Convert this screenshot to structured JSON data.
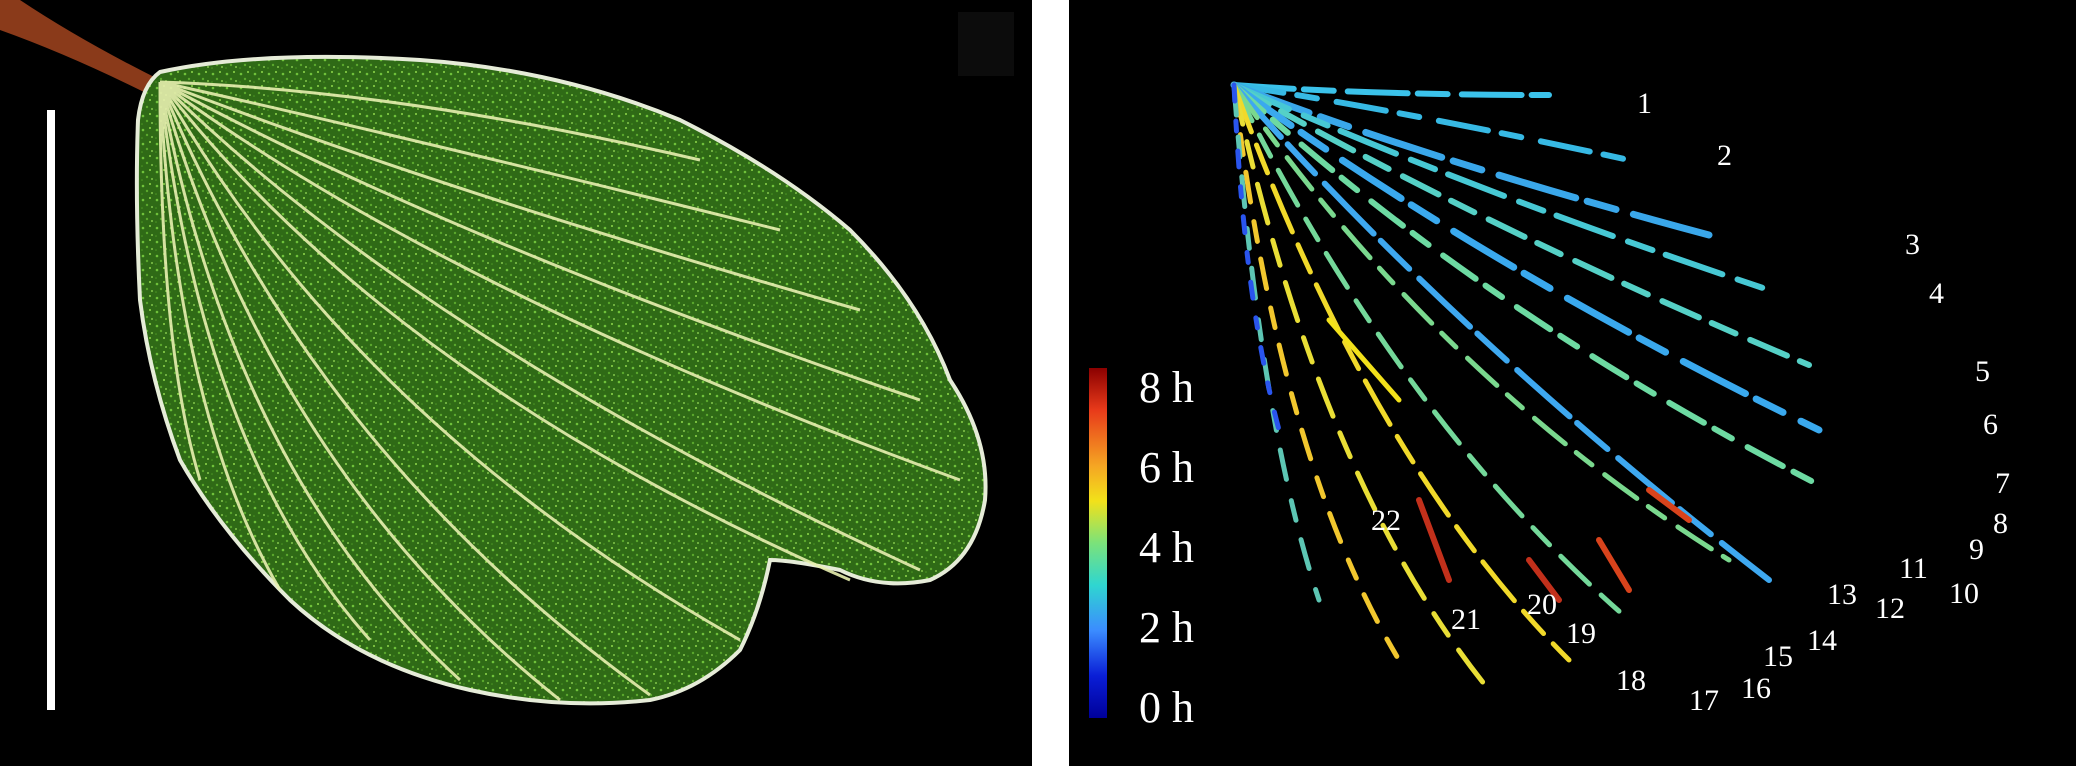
{
  "colorbar": {
    "labels": [
      "8 h",
      "6 h",
      "4 h",
      "2 h",
      "0 h"
    ],
    "stops": [
      "#8b0000",
      "#e83a1a",
      "#f5a623",
      "#f2e11a",
      "#7be27a",
      "#2fd6d0",
      "#3b8cff",
      "#0a1ed6",
      "#00009a"
    ]
  },
  "vein_labels": [
    "1",
    "2",
    "3",
    "4",
    "5",
    "6",
    "7",
    "8",
    "9",
    "10",
    "11",
    "12",
    "13",
    "14",
    "15",
    "16",
    "17",
    "18",
    "19",
    "20",
    "21",
    "22"
  ],
  "colors": {
    "leaf_fill": "#3f7a1c",
    "leaf_vein": "#e8f0b0",
    "scale_bar": "#ffffff",
    "petiole": "#8a3a1a",
    "background": "#000000"
  }
}
